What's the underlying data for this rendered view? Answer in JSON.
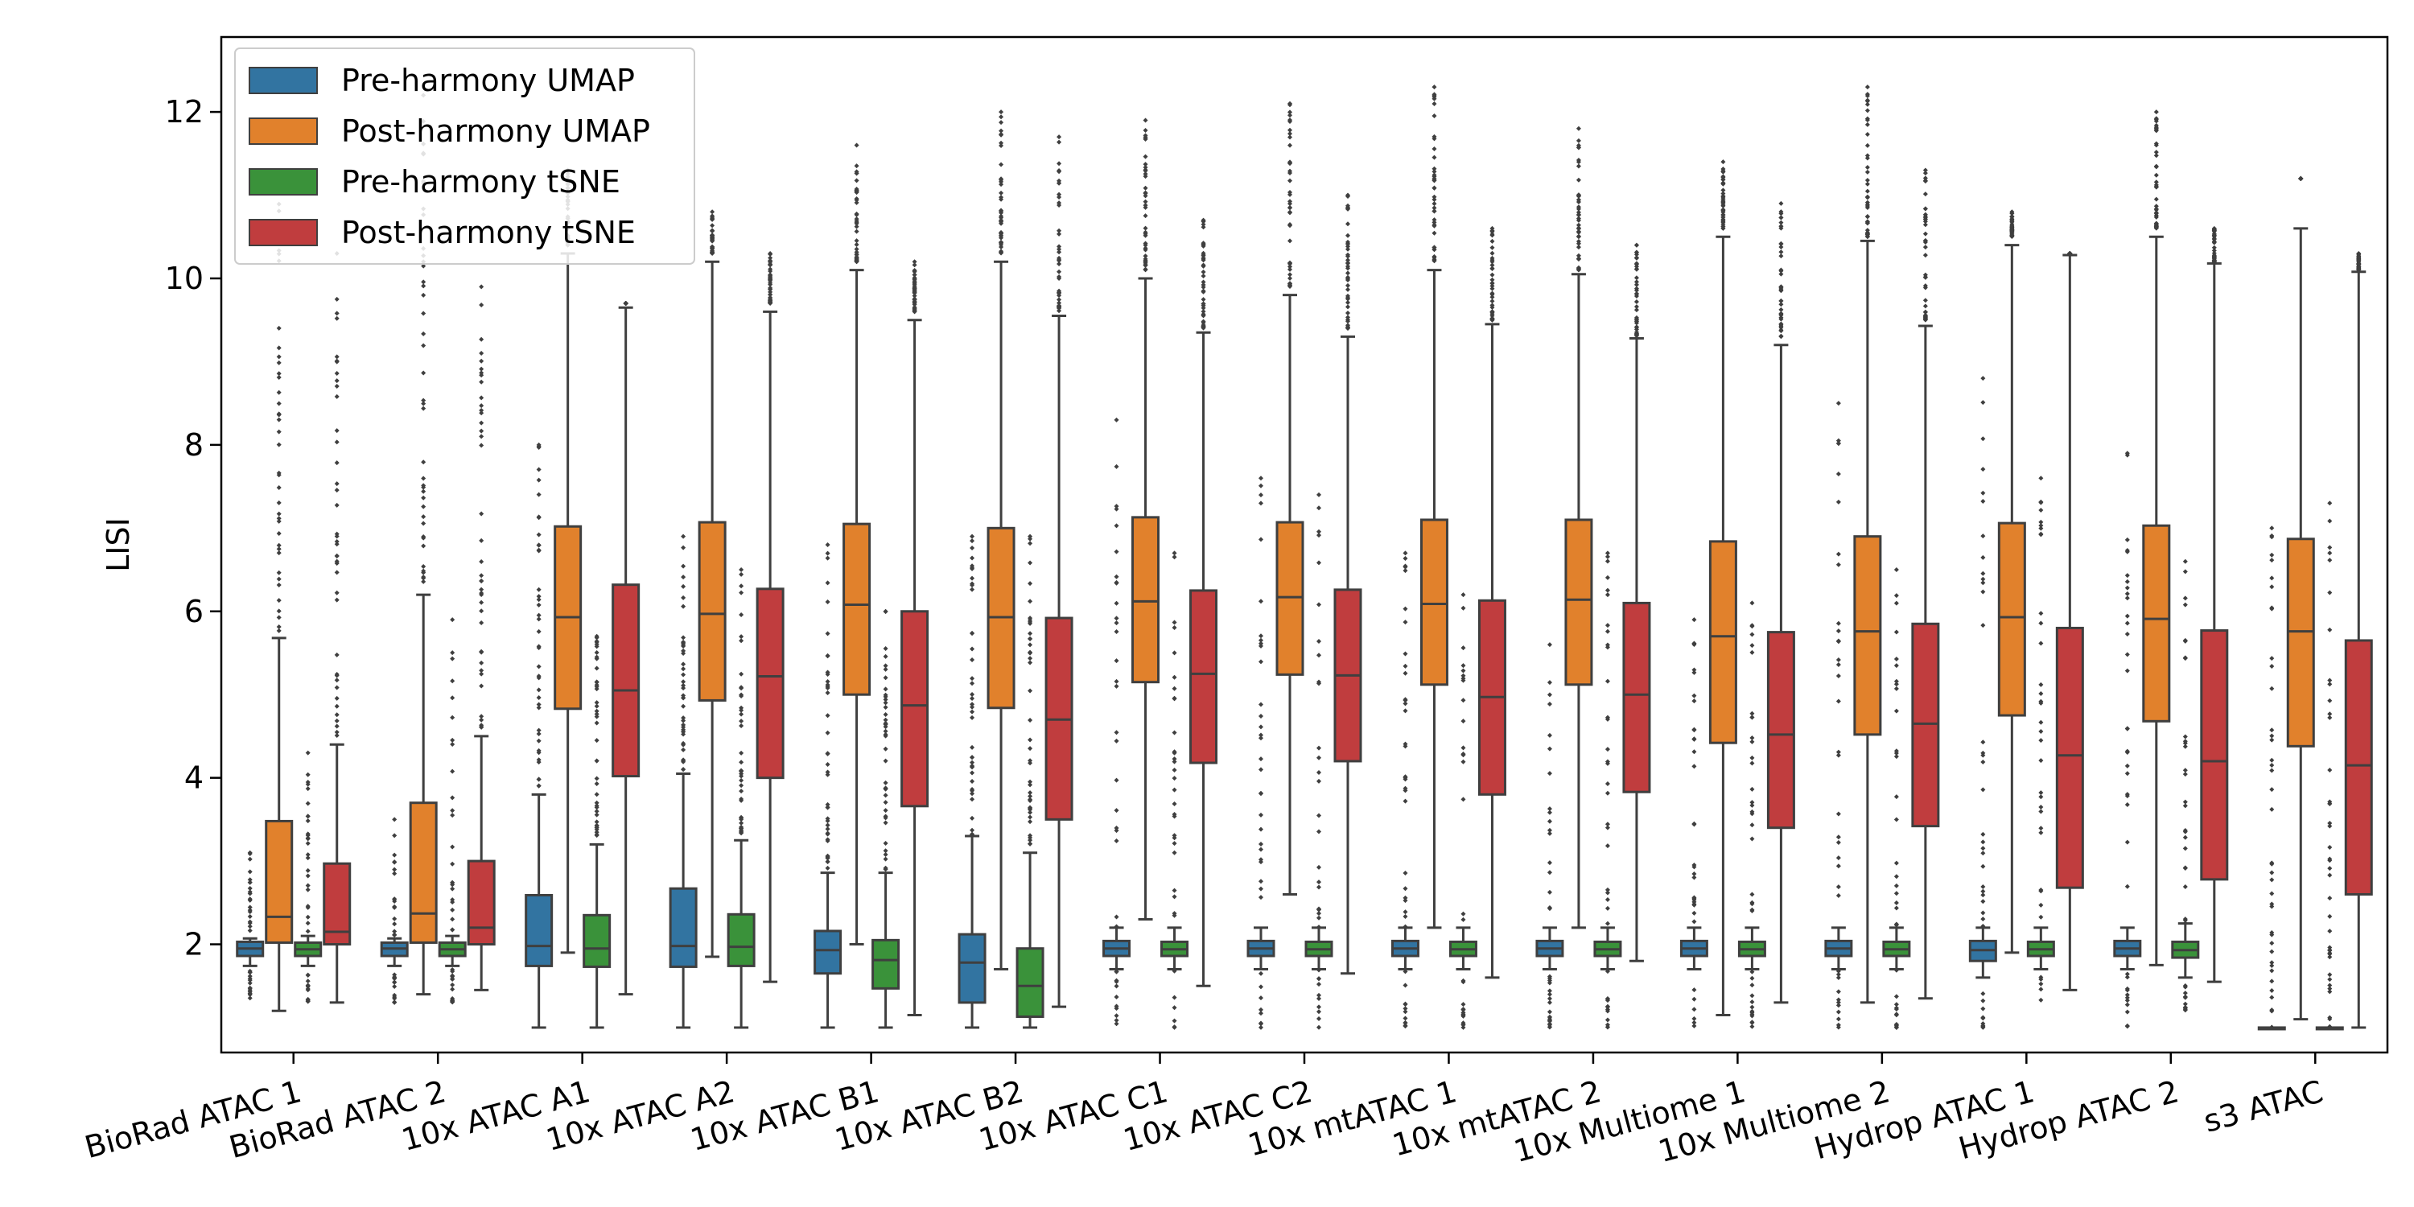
{
  "chart_data": {
    "type": "boxplot",
    "title": "",
    "xlabel": "",
    "ylabel": "LISI",
    "ylim": [
      0.7,
      12.9
    ],
    "yticks": [
      2,
      4,
      6,
      8,
      10,
      12
    ],
    "legend_position": "top-left",
    "categories": [
      "BioRad ATAC 1",
      "BioRad ATAC 2",
      "10x ATAC A1",
      "10x ATAC A2",
      "10x ATAC B1",
      "10x ATAC B2",
      "10x ATAC C1",
      "10x ATAC C2",
      "10x mtATAC 1",
      "10x mtATAC 2",
      "10x Multiome 1",
      "10x Multiome 2",
      "Hydrop ATAC 1",
      "Hydrop ATAC 2",
      "s3 ATAC"
    ],
    "series": [
      {
        "name": "Pre-harmony UMAP",
        "color": "#3274a1",
        "boxes": [
          {
            "q1": 1.86,
            "median": 1.95,
            "q3": 2.03,
            "lo": 1.74,
            "hi": 2.07,
            "outlier_range": [
              1.3,
              3.1
            ]
          },
          {
            "q1": 1.86,
            "median": 1.95,
            "q3": 2.02,
            "lo": 1.74,
            "hi": 2.07,
            "outlier_range": [
              1.3,
              3.5
            ]
          },
          {
            "q1": 1.74,
            "median": 1.98,
            "q3": 2.59,
            "lo": 1.0,
            "hi": 3.8,
            "outlier_range": [
              3.9,
              8.0
            ]
          },
          {
            "q1": 1.73,
            "median": 1.98,
            "q3": 2.67,
            "lo": 1.0,
            "hi": 4.05,
            "outlier_range": [
              4.1,
              6.9
            ]
          },
          {
            "q1": 1.65,
            "median": 1.93,
            "q3": 2.16,
            "lo": 1.0,
            "hi": 2.86,
            "outlier_range": [
              2.9,
              6.8
            ]
          },
          {
            "q1": 1.3,
            "median": 1.78,
            "q3": 2.12,
            "lo": 1.0,
            "hi": 3.3,
            "outlier_range": [
              3.3,
              6.9
            ]
          },
          {
            "q1": 1.86,
            "median": 1.95,
            "q3": 2.04,
            "lo": 1.7,
            "hi": 2.2,
            "outlier_range": [
              1.0,
              8.3
            ]
          },
          {
            "q1": 1.86,
            "median": 1.95,
            "q3": 2.04,
            "lo": 1.7,
            "hi": 2.2,
            "outlier_range": [
              1.0,
              7.6
            ]
          },
          {
            "q1": 1.86,
            "median": 1.95,
            "q3": 2.04,
            "lo": 1.7,
            "hi": 2.2,
            "outlier_range": [
              1.0,
              6.7
            ]
          },
          {
            "q1": 1.86,
            "median": 1.95,
            "q3": 2.04,
            "lo": 1.7,
            "hi": 2.2,
            "outlier_range": [
              1.0,
              5.6
            ]
          },
          {
            "q1": 1.86,
            "median": 1.95,
            "q3": 2.04,
            "lo": 1.7,
            "hi": 2.2,
            "outlier_range": [
              1.0,
              5.9
            ]
          },
          {
            "q1": 1.86,
            "median": 1.95,
            "q3": 2.04,
            "lo": 1.7,
            "hi": 2.2,
            "outlier_range": [
              1.0,
              8.5
            ]
          },
          {
            "q1": 1.8,
            "median": 1.93,
            "q3": 2.04,
            "lo": 1.6,
            "hi": 2.2,
            "outlier_range": [
              1.0,
              8.8
            ]
          },
          {
            "q1": 1.86,
            "median": 1.95,
            "q3": 2.04,
            "lo": 1.7,
            "hi": 2.2,
            "outlier_range": [
              1.0,
              7.9
            ]
          },
          {
            "q1": 1.0,
            "median": 1.0,
            "q3": 1.0,
            "lo": 1.0,
            "hi": 1.0,
            "outlier_range": [
              1.0,
              7.0
            ]
          }
        ]
      },
      {
        "name": "Post-harmony UMAP",
        "color": "#e1812c",
        "boxes": [
          {
            "q1": 2.02,
            "median": 2.33,
            "q3": 3.48,
            "lo": 1.2,
            "hi": 5.68,
            "outlier_range": [
              5.7,
              11.2
            ]
          },
          {
            "q1": 2.02,
            "median": 2.37,
            "q3": 3.7,
            "lo": 1.4,
            "hi": 6.2,
            "outlier_range": [
              6.3,
              12.2
            ]
          },
          {
            "q1": 4.83,
            "median": 5.93,
            "q3": 7.02,
            "lo": 1.9,
            "hi": 10.3,
            "outlier_range": [
              10.4,
              11.3
            ]
          },
          {
            "q1": 4.93,
            "median": 5.97,
            "q3": 7.07,
            "lo": 1.85,
            "hi": 10.2,
            "outlier_range": [
              10.3,
              10.8
            ]
          },
          {
            "q1": 5.0,
            "median": 6.08,
            "q3": 7.05,
            "lo": 2.0,
            "hi": 10.1,
            "outlier_range": [
              10.2,
              11.6
            ]
          },
          {
            "q1": 4.84,
            "median": 5.93,
            "q3": 7.0,
            "lo": 1.7,
            "hi": 10.2,
            "outlier_range": [
              10.3,
              12.0
            ]
          },
          {
            "q1": 5.15,
            "median": 6.12,
            "q3": 7.13,
            "lo": 2.3,
            "hi": 10.0,
            "outlier_range": [
              10.1,
              11.9
            ]
          },
          {
            "q1": 5.24,
            "median": 6.17,
            "q3": 7.07,
            "lo": 2.6,
            "hi": 9.8,
            "outlier_range": [
              9.9,
              12.1
            ]
          },
          {
            "q1": 5.12,
            "median": 6.09,
            "q3": 7.1,
            "lo": 2.2,
            "hi": 10.1,
            "outlier_range": [
              10.2,
              12.3
            ]
          },
          {
            "q1": 5.12,
            "median": 6.14,
            "q3": 7.1,
            "lo": 2.2,
            "hi": 10.05,
            "outlier_range": [
              10.1,
              11.8
            ]
          },
          {
            "q1": 4.42,
            "median": 5.7,
            "q3": 6.84,
            "lo": 1.15,
            "hi": 10.5,
            "outlier_range": [
              10.6,
              11.4
            ]
          },
          {
            "q1": 4.52,
            "median": 5.76,
            "q3": 6.9,
            "lo": 1.3,
            "hi": 10.45,
            "outlier_range": [
              10.5,
              12.3
            ]
          },
          {
            "q1": 4.75,
            "median": 5.93,
            "q3": 7.06,
            "lo": 1.9,
            "hi": 10.4,
            "outlier_range": [
              10.5,
              10.8
            ]
          },
          {
            "q1": 4.68,
            "median": 5.91,
            "q3": 7.03,
            "lo": 1.75,
            "hi": 10.5,
            "outlier_range": [
              10.6,
              12.0
            ]
          },
          {
            "q1": 4.38,
            "median": 5.76,
            "q3": 6.87,
            "lo": 1.1,
            "hi": 10.6,
            "outlier_range": [
              11.2,
              11.2
            ]
          }
        ]
      },
      {
        "name": "Pre-harmony tSNE",
        "color": "#3a923a",
        "boxes": [
          {
            "q1": 1.86,
            "median": 1.94,
            "q3": 2.02,
            "lo": 1.74,
            "hi": 2.1,
            "outlier_range": [
              1.3,
              4.3
            ]
          },
          {
            "q1": 1.86,
            "median": 1.94,
            "q3": 2.02,
            "lo": 1.74,
            "hi": 2.1,
            "outlier_range": [
              1.3,
              5.9
            ]
          },
          {
            "q1": 1.73,
            "median": 1.95,
            "q3": 2.35,
            "lo": 1.0,
            "hi": 3.2,
            "outlier_range": [
              3.3,
              5.7
            ]
          },
          {
            "q1": 1.74,
            "median": 1.97,
            "q3": 2.36,
            "lo": 1.0,
            "hi": 3.25,
            "outlier_range": [
              3.3,
              6.5
            ]
          },
          {
            "q1": 1.47,
            "median": 1.81,
            "q3": 2.05,
            "lo": 1.0,
            "hi": 2.86,
            "outlier_range": [
              2.9,
              6.0
            ]
          },
          {
            "q1": 1.13,
            "median": 1.5,
            "q3": 1.95,
            "lo": 1.0,
            "hi": 3.1,
            "outlier_range": [
              3.2,
              6.9
            ]
          },
          {
            "q1": 1.86,
            "median": 1.94,
            "q3": 2.03,
            "lo": 1.7,
            "hi": 2.2,
            "outlier_range": [
              1.0,
              6.7
            ]
          },
          {
            "q1": 1.86,
            "median": 1.94,
            "q3": 2.03,
            "lo": 1.7,
            "hi": 2.2,
            "outlier_range": [
              1.0,
              7.4
            ]
          },
          {
            "q1": 1.86,
            "median": 1.94,
            "q3": 2.03,
            "lo": 1.7,
            "hi": 2.2,
            "outlier_range": [
              1.0,
              6.2
            ]
          },
          {
            "q1": 1.86,
            "median": 1.94,
            "q3": 2.03,
            "lo": 1.7,
            "hi": 2.2,
            "outlier_range": [
              1.0,
              6.7
            ]
          },
          {
            "q1": 1.86,
            "median": 1.94,
            "q3": 2.03,
            "lo": 1.7,
            "hi": 2.2,
            "outlier_range": [
              1.0,
              6.1
            ]
          },
          {
            "q1": 1.86,
            "median": 1.94,
            "q3": 2.03,
            "lo": 1.7,
            "hi": 2.2,
            "outlier_range": [
              1.0,
              6.5
            ]
          },
          {
            "q1": 1.86,
            "median": 1.94,
            "q3": 2.03,
            "lo": 1.7,
            "hi": 2.2,
            "outlier_range": [
              1.3,
              7.6
            ]
          },
          {
            "q1": 1.84,
            "median": 1.93,
            "q3": 2.03,
            "lo": 1.6,
            "hi": 2.25,
            "outlier_range": [
              1.2,
              6.6
            ]
          },
          {
            "q1": 1.0,
            "median": 1.0,
            "q3": 1.0,
            "lo": 1.0,
            "hi": 1.0,
            "outlier_range": [
              1.0,
              7.3
            ]
          }
        ]
      },
      {
        "name": "Post-harmony tSNE",
        "color": "#c03d3e",
        "boxes": [
          {
            "q1": 2.0,
            "median": 2.15,
            "q3": 2.97,
            "lo": 1.3,
            "hi": 4.4,
            "outlier_range": [
              4.5,
              10.3
            ]
          },
          {
            "q1": 2.0,
            "median": 2.2,
            "q3": 3.0,
            "lo": 1.45,
            "hi": 4.5,
            "outlier_range": [
              4.6,
              9.9
            ]
          },
          {
            "q1": 4.02,
            "median": 5.05,
            "q3": 6.32,
            "lo": 1.4,
            "hi": 9.65,
            "outlier_range": [
              9.7,
              9.7
            ]
          },
          {
            "q1": 4.0,
            "median": 5.22,
            "q3": 6.27,
            "lo": 1.55,
            "hi": 9.6,
            "outlier_range": [
              9.7,
              10.3
            ]
          },
          {
            "q1": 3.66,
            "median": 4.87,
            "q3": 6.0,
            "lo": 1.15,
            "hi": 9.5,
            "outlier_range": [
              9.6,
              10.2
            ]
          },
          {
            "q1": 3.5,
            "median": 4.7,
            "q3": 5.92,
            "lo": 1.25,
            "hi": 9.55,
            "outlier_range": [
              9.6,
              11.7
            ]
          },
          {
            "q1": 4.18,
            "median": 5.25,
            "q3": 6.25,
            "lo": 1.5,
            "hi": 9.35,
            "outlier_range": [
              9.4,
              10.7
            ]
          },
          {
            "q1": 4.2,
            "median": 5.23,
            "q3": 6.26,
            "lo": 1.65,
            "hi": 9.3,
            "outlier_range": [
              9.4,
              11.0
            ]
          },
          {
            "q1": 3.8,
            "median": 4.97,
            "q3": 6.13,
            "lo": 1.6,
            "hi": 9.45,
            "outlier_range": [
              9.5,
              10.6
            ]
          },
          {
            "q1": 3.83,
            "median": 5.0,
            "q3": 6.1,
            "lo": 1.8,
            "hi": 9.28,
            "outlier_range": [
              9.3,
              10.4
            ]
          },
          {
            "q1": 3.4,
            "median": 4.52,
            "q3": 5.75,
            "lo": 1.3,
            "hi": 9.2,
            "outlier_range": [
              9.3,
              10.9
            ]
          },
          {
            "q1": 3.42,
            "median": 4.65,
            "q3": 5.85,
            "lo": 1.35,
            "hi": 9.43,
            "outlier_range": [
              9.5,
              11.3
            ]
          },
          {
            "q1": 2.68,
            "median": 4.27,
            "q3": 5.8,
            "lo": 1.45,
            "hi": 10.28,
            "outlier_range": [
              10.3,
              10.3
            ]
          },
          {
            "q1": 2.78,
            "median": 4.2,
            "q3": 5.77,
            "lo": 1.55,
            "hi": 10.18,
            "outlier_range": [
              10.2,
              10.6
            ]
          },
          {
            "q1": 2.6,
            "median": 4.15,
            "q3": 5.65,
            "lo": 1.0,
            "hi": 10.08,
            "outlier_range": [
              10.1,
              10.3
            ]
          }
        ]
      }
    ]
  }
}
